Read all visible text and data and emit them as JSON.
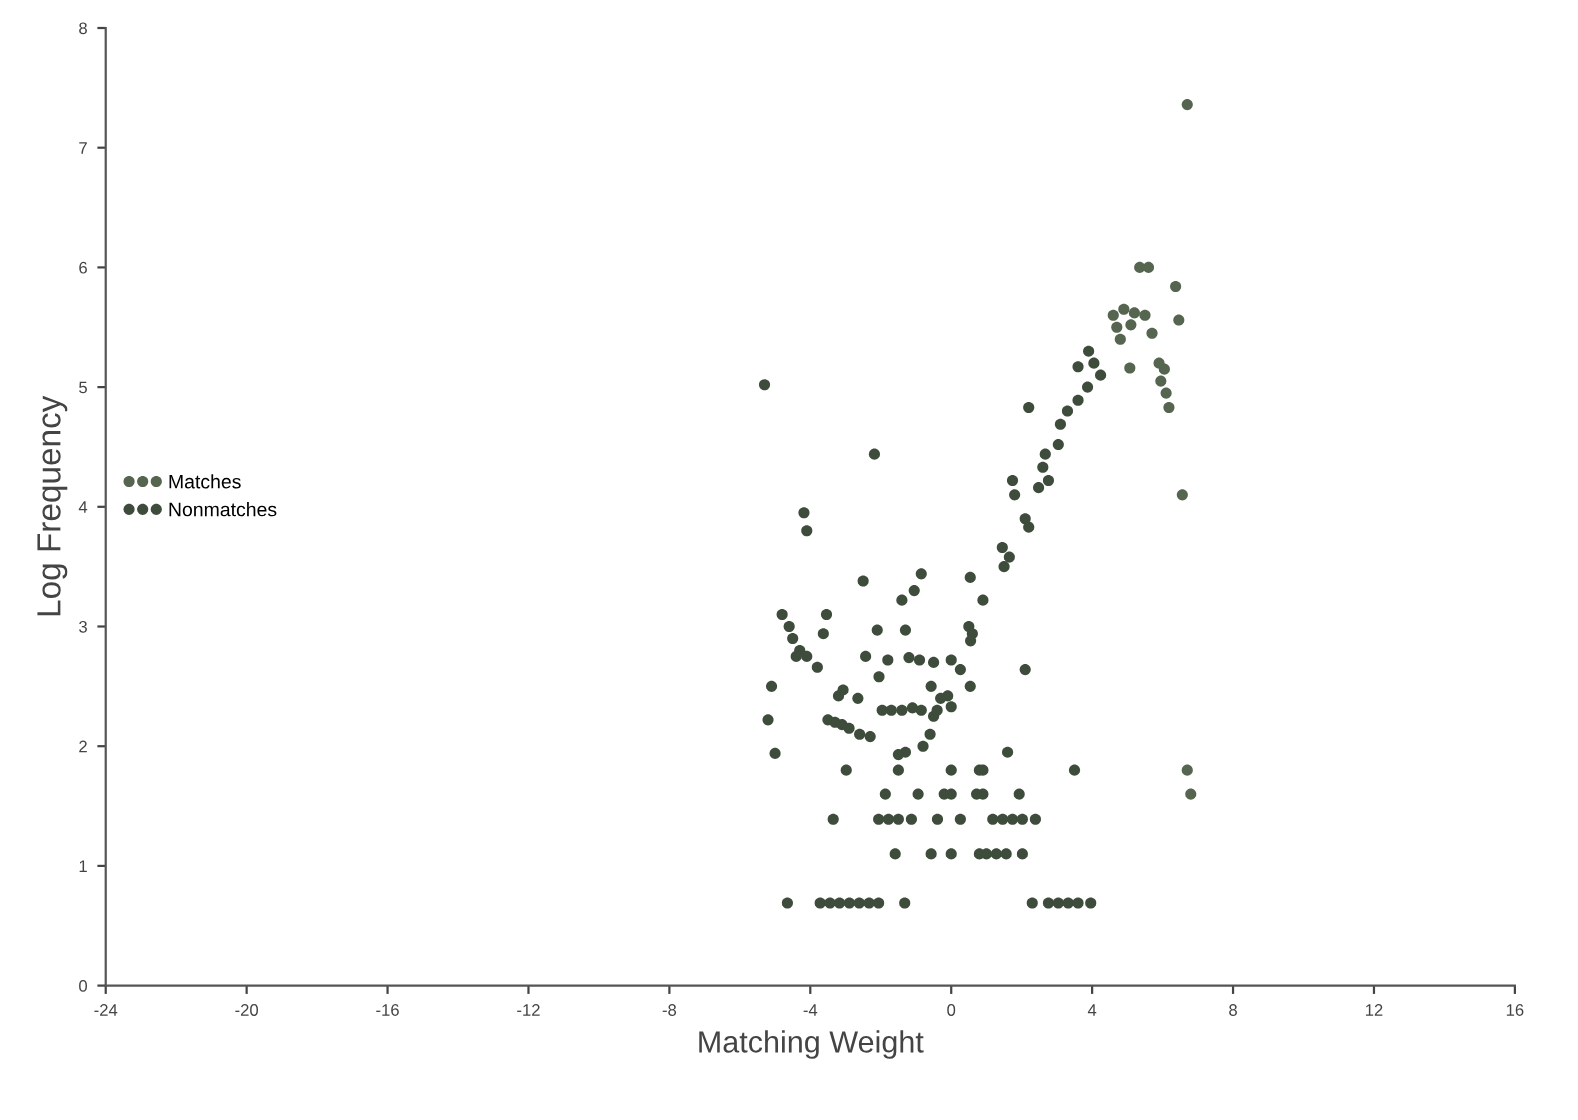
{
  "chart_data": {
    "type": "scatter",
    "xlabel": "Matching Weight",
    "ylabel": "Log Frequency",
    "xlim": [
      -24,
      16
    ],
    "xticks": [
      -24,
      -20,
      -16,
      -12,
      -8,
      -4,
      0,
      4,
      8,
      12,
      16
    ],
    "ylim": [
      0,
      8
    ],
    "yticks": [
      0,
      1,
      2,
      3,
      4,
      5,
      6,
      7,
      8
    ],
    "legend": "left",
    "marker": "circle",
    "grid": false,
    "series": [
      {
        "name": "Matches",
        "color": "#56654f",
        "x": [
          6.7,
          5.35,
          5.6,
          6.37,
          6.46,
          4.6,
          4.9,
          5.2,
          5.5,
          4.7,
          5.1,
          5.7,
          4.8,
          5.9,
          6.05,
          5.95,
          6.1,
          6.18,
          6.56,
          5.07,
          6.7,
          6.8
        ],
        "values": [
          7.36,
          6.0,
          6.0,
          5.84,
          5.56,
          5.6,
          5.65,
          5.62,
          5.6,
          5.5,
          5.52,
          5.45,
          5.4,
          5.2,
          5.15,
          5.05,
          4.95,
          4.83,
          4.1,
          5.16,
          1.8,
          1.6
        ]
      },
      {
        "name": "Nonmatches",
        "color": "#3e4c3b",
        "x": [
          3.9,
          4.05,
          3.6,
          4.24,
          3.87,
          3.6,
          3.3,
          3.1,
          2.2,
          3.04,
          2.67,
          2.6,
          2.76,
          2.48,
          1.74,
          1.8,
          2.1,
          2.2,
          1.45,
          1.65,
          1.5,
          0.9,
          0.5,
          0.6,
          0.55,
          0.54,
          -0.85,
          -1.05,
          -1.4,
          -2.5,
          -4.8,
          -4.6,
          -4.5,
          -4.3,
          -4.4,
          -3.54,
          -3.63,
          -4.1,
          -3.8,
          -5.1,
          -5.2,
          -5.0,
          -5.3,
          -2.18,
          -4.18,
          -4.1,
          -2.1,
          -1.3,
          -2.43,
          -1.8,
          -1.2,
          -0.9,
          -0.5,
          0.0,
          0.26,
          -2.05,
          -0.57,
          0.54,
          -0.1,
          0.0,
          -3.07,
          -3.2,
          -2.65,
          -3.5,
          -3.3,
          -3.1,
          -2.9,
          -2.6,
          -2.3,
          -1.96,
          -1.7,
          -1.4,
          -1.1,
          -0.85,
          -0.5,
          -0.6,
          -0.8,
          -1.3,
          -1.5,
          -0.4,
          -0.3,
          2.1,
          1.6,
          -2.98,
          -1.5,
          0.0,
          0.8,
          0.9,
          3.5,
          -1.87,
          -0.94,
          -0.2,
          0.0,
          0.72,
          0.9,
          1.93,
          -3.35,
          -2.06,
          -1.78,
          -1.5,
          -1.13,
          -0.39,
          0.26,
          1.18,
          1.46,
          1.74,
          2.02,
          2.39,
          -1.59,
          -0.57,
          0.0,
          0.8,
          1.0,
          1.28,
          1.56,
          2.02,
          -4.65,
          -3.72,
          -3.44,
          -3.17,
          -2.89,
          -2.61,
          -2.33,
          -2.06,
          -1.32,
          2.3,
          2.76,
          3.04,
          3.32,
          3.6,
          3.96
        ],
        "values": [
          5.3,
          5.2,
          5.17,
          5.1,
          5.0,
          4.89,
          4.8,
          4.69,
          4.83,
          4.52,
          4.44,
          4.33,
          4.22,
          4.16,
          4.22,
          4.1,
          3.9,
          3.83,
          3.66,
          3.58,
          3.5,
          3.22,
          3.0,
          2.94,
          2.88,
          3.41,
          3.44,
          3.3,
          3.22,
          3.38,
          3.1,
          3.0,
          2.9,
          2.8,
          2.75,
          3.1,
          2.94,
          2.75,
          2.66,
          2.5,
          2.22,
          1.94,
          5.02,
          4.44,
          3.95,
          3.8,
          2.97,
          2.97,
          2.75,
          2.72,
          2.74,
          2.72,
          2.7,
          2.72,
          2.64,
          2.58,
          2.5,
          2.5,
          2.42,
          2.33,
          2.47,
          2.42,
          2.4,
          2.22,
          2.2,
          2.18,
          2.15,
          2.1,
          2.08,
          2.3,
          2.3,
          2.3,
          2.32,
          2.3,
          2.25,
          2.1,
          2.0,
          1.95,
          1.93,
          2.3,
          2.4,
          2.64,
          1.95,
          1.8,
          1.8,
          1.8,
          1.8,
          1.8,
          1.8,
          1.6,
          1.6,
          1.6,
          1.6,
          1.6,
          1.6,
          1.6,
          1.39,
          1.39,
          1.39,
          1.39,
          1.39,
          1.39,
          1.39,
          1.39,
          1.39,
          1.39,
          1.39,
          1.39,
          1.1,
          1.1,
          1.1,
          1.1,
          1.1,
          1.1,
          1.1,
          1.1,
          0.69,
          0.69,
          0.69,
          0.69,
          0.69,
          0.69,
          0.69,
          0.69,
          0.69,
          0.69,
          0.69,
          0.69,
          0.69,
          0.69,
          0.69
        ]
      }
    ]
  }
}
